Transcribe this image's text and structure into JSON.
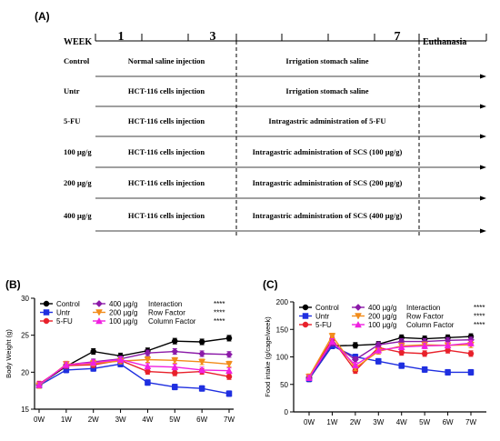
{
  "panel_a": {
    "label": "(A)",
    "week_label": "WEEK",
    "week_ticks": [
      {
        "text": "1"
      },
      {
        "text": "3"
      },
      {
        "text": "7"
      }
    ],
    "euthanasia_label": "Euthanasia",
    "rows": [
      {
        "group": "Control",
        "phase1": "Normal saline injection",
        "phase2": "Irrigation stomach saline"
      },
      {
        "group": "Untr",
        "phase1": "HCT-116 cells injection",
        "phase2": "Irrigation stomach saline"
      },
      {
        "group": "5-FU",
        "phase1": "HCT-116 cells injection",
        "phase2": "Intragastric administration of 5-FU"
      },
      {
        "group": "100 µg/g",
        "phase1": "HCT-116 cells injection",
        "phase2": "Intragastric administration of  SCS (100 µg/g)"
      },
      {
        "group": "200 µg/g",
        "phase1": "HCT-116 cells injection",
        "phase2": "Intragastric administration of SCS (200 µg/g)"
      },
      {
        "group": "400 µg/g",
        "phase1": "HCT-116 cells injection",
        "phase2": "Intragastric administration of SCS (400 µg/g)"
      }
    ]
  },
  "chart_data": [
    {
      "panel_label": "(B)",
      "type": "line",
      "ylabel": "Body Weight (g)",
      "xlabel": "",
      "categories": [
        "0W",
        "1W",
        "2W",
        "3W",
        "4W",
        "5W",
        "6W",
        "7W"
      ],
      "ylim": [
        15,
        30
      ],
      "yticks": [
        15,
        20,
        25,
        30
      ],
      "grid": false,
      "legend_position": "top",
      "stats": [
        {
          "label": "Interaction",
          "value": "****"
        },
        {
          "label": "Row Factor",
          "value": "****"
        },
        {
          "label": "Column Factor",
          "value": "****"
        }
      ],
      "series": [
        {
          "name": "Control",
          "color": "#000000",
          "marker": "circle",
          "values": [
            18.3,
            20.8,
            22.8,
            22.2,
            22.9,
            24.2,
            24.1,
            24.6
          ]
        },
        {
          "name": "Untr",
          "color": "#1f2fe0",
          "marker": "square",
          "values": [
            18.2,
            20.3,
            20.5,
            21.1,
            18.6,
            18.0,
            17.8,
            17.1
          ]
        },
        {
          "name": "5-FU",
          "color": "#e8202a",
          "marker": "circle",
          "values": [
            18.4,
            20.9,
            21.0,
            21.6,
            20.1,
            19.9,
            20.1,
            19.4
          ]
        },
        {
          "name": "400 µg/g",
          "color": "#8b1aa8",
          "marker": "diamond",
          "values": [
            18.3,
            21.0,
            21.4,
            21.8,
            22.6,
            22.8,
            22.5,
            22.4
          ]
        },
        {
          "name": "200 µg/g",
          "color": "#f28c1b",
          "marker": "triangle-down",
          "values": [
            18.2,
            21.1,
            21.2,
            21.5,
            21.7,
            21.6,
            21.4,
            21.1
          ]
        },
        {
          "name": "100 µg/g",
          "color": "#f020e0",
          "marker": "triangle-up",
          "values": [
            18.3,
            21.0,
            21.3,
            21.7,
            20.8,
            20.7,
            20.3,
            20.2
          ]
        }
      ]
    },
    {
      "panel_label": "(C)",
      "type": "line",
      "ylabel": "Food intake (g/cage/week)",
      "xlabel": "",
      "categories": [
        "0W",
        "1W",
        "2W",
        "3W",
        "4W",
        "5W",
        "6W",
        "7W"
      ],
      "ylim": [
        0,
        200
      ],
      "yticks": [
        0,
        50,
        100,
        150,
        200
      ],
      "grid": false,
      "legend_position": "top",
      "stats": [
        {
          "label": "Interaction",
          "value": "****"
        },
        {
          "label": "Row Factor",
          "value": "****"
        },
        {
          "label": "Column Factor",
          "value": "****"
        }
      ],
      "series": [
        {
          "name": "Control",
          "color": "#000000",
          "marker": "circle",
          "values": [
            60,
            120,
            121,
            123,
            135,
            133,
            135,
            137
          ]
        },
        {
          "name": "Untr",
          "color": "#1f2fe0",
          "marker": "square",
          "values": [
            60,
            120,
            100,
            92,
            84,
            77,
            72,
            72
          ]
        },
        {
          "name": "5-FU",
          "color": "#e8202a",
          "marker": "circle",
          "values": [
            63,
            132,
            75,
            117,
            108,
            106,
            112,
            106
          ]
        },
        {
          "name": "400 µg/g",
          "color": "#8b1aa8",
          "marker": "diamond",
          "values": [
            62,
            125,
            95,
            122,
            128,
            128,
            130,
            131
          ]
        },
        {
          "name": "200 µg/g",
          "color": "#f28c1b",
          "marker": "triangle-down",
          "values": [
            64,
            138,
            80,
            110,
            120,
            122,
            121,
            122
          ]
        },
        {
          "name": "100 µg/g",
          "color": "#f020e0",
          "marker": "triangle-up",
          "values": [
            62,
            128,
            85,
            112,
            118,
            120,
            121,
            125
          ]
        }
      ]
    }
  ]
}
